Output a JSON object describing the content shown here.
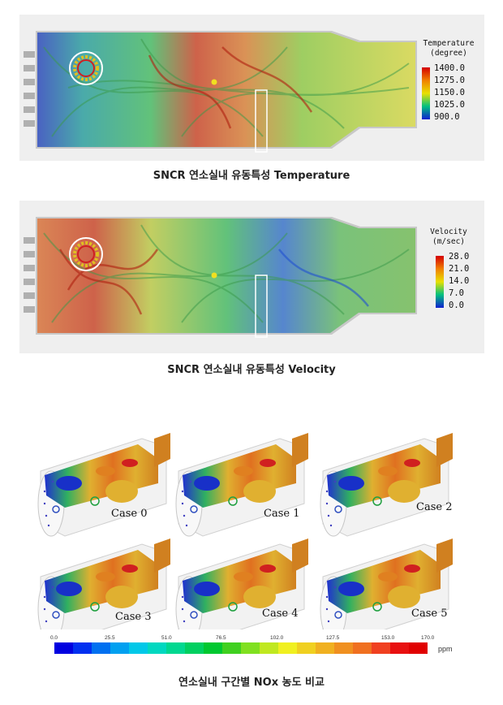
{
  "figure1": {
    "caption": "SNCR 연소실내 유동특성 Temperature",
    "legend_title_line1": "Temperature",
    "legend_title_line2": "(degree)",
    "ticks": [
      "1400.0",
      "1275.0",
      "1150.0",
      "1025.0",
      "900.0"
    ],
    "colors": [
      "#d40000",
      "#f08000",
      "#e8e000",
      "#00c080",
      "#1020d0"
    ]
  },
  "figure2": {
    "caption": "SNCR 연소실내 유동특성 Velocity",
    "legend_title_line1": "Velocity",
    "legend_title_line2": "(m/sec)",
    "ticks": [
      "28.0",
      "21.0",
      "14.0",
      "7.0",
      "0.0"
    ],
    "colors": [
      "#d40000",
      "#f08000",
      "#e8e000",
      "#00c080",
      "#1020d0"
    ]
  },
  "figure3": {
    "caption": "연소실내 구간별 NOx 농도 비교",
    "cases": [
      "Case 0",
      "Case 1",
      "Case 2",
      "Case 3",
      "Case 4",
      "Case 5"
    ],
    "colorbar_ticks": [
      "0.0",
      "25.5",
      "51.0",
      "76.5",
      "102.0",
      "127.5",
      "153.0",
      "170.0"
    ],
    "unit": "ppm",
    "colorbar_colors": [
      "#0000e0",
      "#0030f0",
      "#0070f0",
      "#00a0f0",
      "#00c8e8",
      "#00d8c0",
      "#00d890",
      "#00d060",
      "#00c830",
      "#40d020",
      "#80e020",
      "#c0e820",
      "#f0f020",
      "#f0d020",
      "#f0b020",
      "#f09020",
      "#f07020",
      "#f04020",
      "#e81010",
      "#e00000"
    ]
  }
}
